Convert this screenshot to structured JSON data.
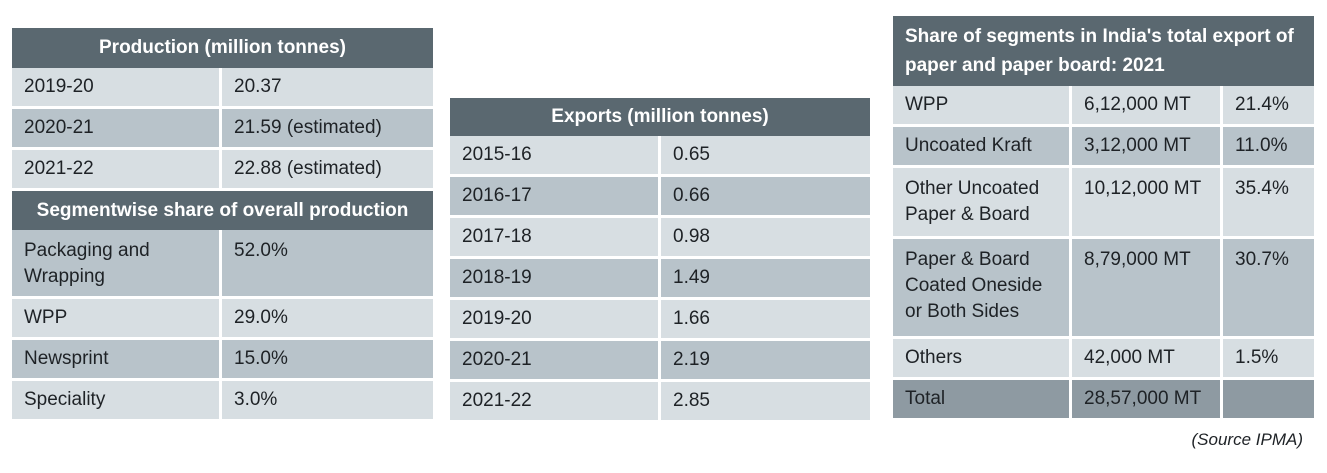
{
  "production": {
    "title": "Production (million tonnes)",
    "rows": [
      [
        "2019-20",
        "20.37"
      ],
      [
        "2020-21",
        "21.59 (estimated)"
      ],
      [
        "2021-22",
        "22.88 (estimated)"
      ]
    ]
  },
  "segmentwise": {
    "title": "Segmentwise share of overall production",
    "rows": [
      [
        "Packaging and Wrapping",
        "52.0%"
      ],
      [
        "WPP",
        "29.0%"
      ],
      [
        "Newsprint",
        "15.0%"
      ],
      [
        "Speciality",
        "3.0%"
      ]
    ]
  },
  "exports": {
    "title": "Exports (million tonnes)",
    "rows": [
      [
        "2015-16",
        "0.65"
      ],
      [
        "2016-17",
        "0.66"
      ],
      [
        "2017-18",
        "0.98"
      ],
      [
        "2018-19",
        "1.49"
      ],
      [
        "2019-20",
        "1.66"
      ],
      [
        "2020-21",
        "2.19"
      ],
      [
        "2021-22",
        "2.85"
      ]
    ]
  },
  "share": {
    "title": "Share of segments in India's total export of paper and paper board: 2021",
    "rows": [
      [
        "WPP",
        "6,12,000 MT",
        "21.4%"
      ],
      [
        "Uncoated Kraft",
        "3,12,000 MT",
        "11.0%"
      ],
      [
        "Other Uncoated Paper & Board",
        "10,12,000 MT",
        "35.4%"
      ],
      [
        "Paper & Board Coated Oneside or Both Sides",
        "8,79,000 MT",
        "30.7%"
      ],
      [
        "Others",
        "42,000 MT",
        "1.5%"
      ],
      [
        "Total",
        "28,57,000 MT",
        ""
      ]
    ]
  },
  "source": "(Source IPMA)"
}
